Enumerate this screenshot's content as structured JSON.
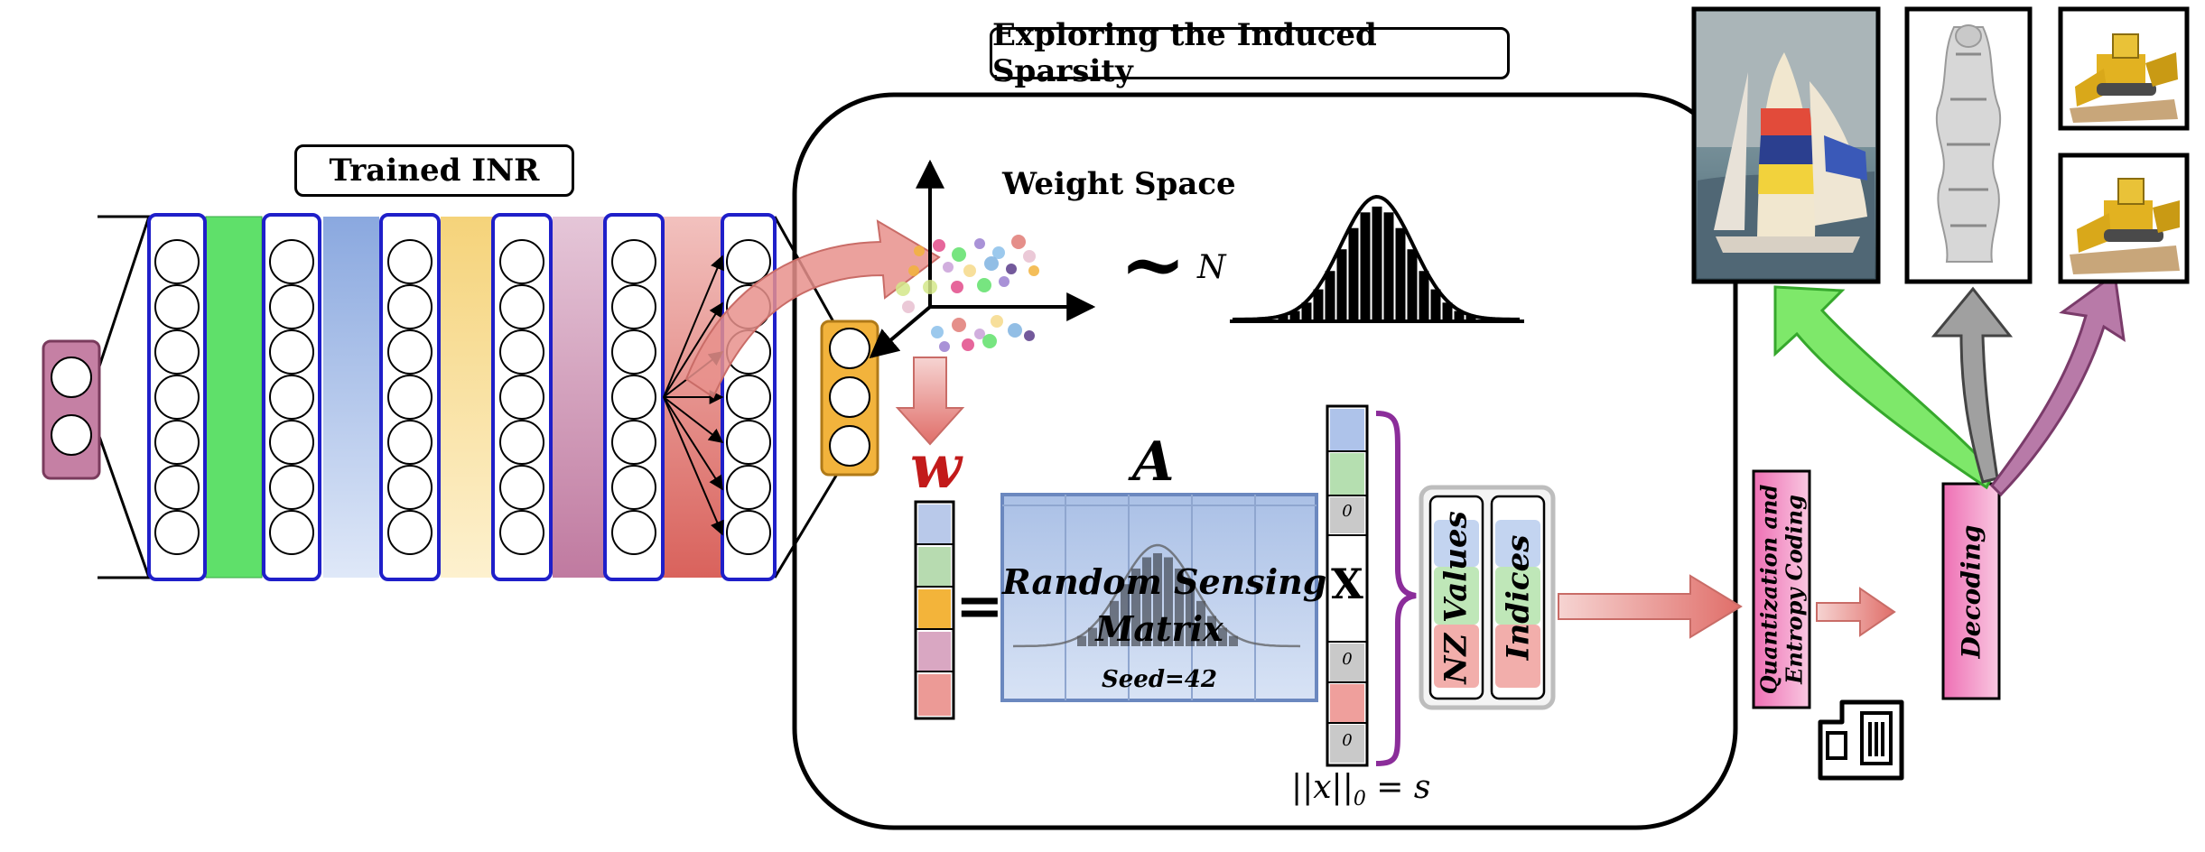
{
  "labels": {
    "trained_inr": "Trained INR",
    "exploring": "Exploring the Induced Sparsity",
    "weight_space": "Weight Space",
    "tilde": "~",
    "normal": "N",
    "w": "w",
    "equals": "=",
    "matrix_a": "A",
    "random_sensing": "Random Sensing",
    "matrix_word": "Matrix",
    "seed": "Seed=42",
    "times": "X",
    "zero": "0",
    "nz_values": "NZ Values",
    "indices": "Indices",
    "quant_line1": "Quantization and",
    "quant_line2": "Entropy Coding",
    "decoding": "Decoding",
    "norm_constraint": "||x||",
    "norm_sub": "0",
    "norm_rhs": "= s"
  },
  "colors": {
    "layer_green": "#5fe06a",
    "layer_blue": "#9db7e6",
    "layer_yellow": "#f6d98a",
    "layer_mauve": "#c38aa8",
    "layer_red": "#e07b76",
    "neuron_border": "#1f1fc9",
    "input_node": "#c580a4",
    "output_node": "#f2b33c",
    "arrow_red": "#e8908c",
    "arrow_green": "#7ee86a",
    "arrow_gray": "#a0a0a0",
    "arrow_purple": "#b87aa8",
    "brace": "#8b2d9a",
    "pink_box": "#f07ab8",
    "matrix_fill": "#b9cdea"
  },
  "icons": [
    "memory-card-icon",
    "sailboat-image",
    "statue-render-image",
    "bulldozer-image-top",
    "bulldozer-image-bottom"
  ]
}
